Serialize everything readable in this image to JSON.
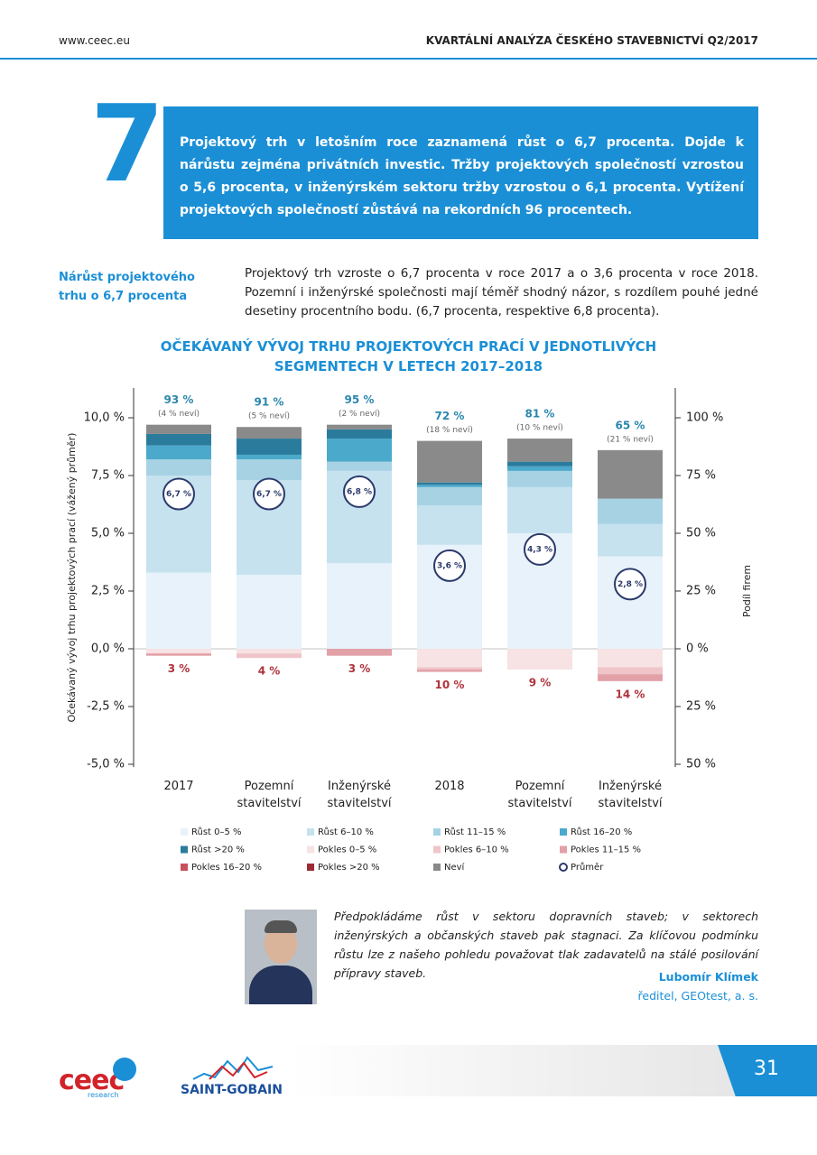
{
  "header": {
    "site": "www.ceec.eu",
    "title": "KVARTÁLNÍ ANALÝZA ČESKÉHO STAVEBNICTVÍ Q2/2017"
  },
  "callout": {
    "number": "7",
    "text": "Projektový trh v letošním roce zaznamená růst o 6,7 procenta. Dojde k nárůstu zejména privátních investic. Tržby projektových společností vzrostou o 5,6 procenta, v inženýrském sektoru tržby vzrostou o 6,1 procenta. Vytížení projektových společností zůstává na rekordních 96 procentech."
  },
  "section": {
    "heading": "Nárůst projektového trhu o 6,7 procenta",
    "text": "Projektový trh vzroste o 6,7 procenta v roce 2017 a o 3,6 procenta v roce 2018. Pozemní i inženýrské společnosti mají téměř shodný názor, s rozdílem pouhé jedné desetiny procentního bodu. (6,7 procenta, respektive 6,8 procenta)."
  },
  "chart_data": {
    "type": "bar",
    "stacked": true,
    "title": "OČEKÁVANÝ VÝVOJ TRHU PROJEKTOVÝCH PRACÍ V JEDNOTLIVÝCH SEGMENTECH V LETECH 2017–2018",
    "y_label": "Očekávaný vývoj trhu projektových prací (vážený průměr)",
    "y2_label": "Podíl firem",
    "categories": [
      "2017",
      "Pozemní stavitelství",
      "Inženýrské stavitelství",
      "2018",
      "Pozemní stavitelství",
      "Inženýrské stavitelství"
    ],
    "ylim": [
      -5,
      10
    ],
    "yticks": [
      {
        "value": -5,
        "label": "-5,0 %"
      },
      {
        "value": -2.5,
        "label": "-2,5 %"
      },
      {
        "value": 0,
        "label": "0,0 %"
      },
      {
        "value": 2.5,
        "label": "2,5 %"
      },
      {
        "value": 5,
        "label": "5,0 %"
      },
      {
        "value": 7.5,
        "label": "7,5 %"
      },
      {
        "value": 10,
        "label": "10,0 %"
      }
    ],
    "y2lim": [
      -50,
      100
    ],
    "y2ticks": [
      {
        "value": -50,
        "label": "50 %"
      },
      {
        "value": -25,
        "label": "25 %"
      },
      {
        "value": 0,
        "label": "0 %"
      },
      {
        "value": 25,
        "label": "25 %"
      },
      {
        "value": 50,
        "label": "50 %"
      },
      {
        "value": 75,
        "label": "75 %"
      },
      {
        "value": 100,
        "label": "100 %"
      }
    ],
    "series": [
      {
        "name": "Růst 0–5 %",
        "color": "#e8f2fa",
        "axis": "y2",
        "values": [
          33,
          32,
          37,
          45,
          50,
          40
        ]
      },
      {
        "name": "Růst 6–10 %",
        "color": "#c6e2ef",
        "axis": "y2",
        "values": [
          42,
          41,
          40,
          17,
          20,
          14
        ]
      },
      {
        "name": "Růst 11–15 %",
        "color": "#a6d2e4",
        "axis": "y2",
        "values": [
          7,
          9,
          4,
          8,
          7,
          11
        ]
      },
      {
        "name": "Růst 16–20 %",
        "color": "#4ba9cb",
        "axis": "y2",
        "values": [
          6,
          2,
          10,
          1,
          2,
          0
        ]
      },
      {
        "name": "Růst >20 %",
        "color": "#2b7b9d",
        "axis": "y2",
        "values": [
          5,
          7,
          4,
          1,
          2,
          0
        ]
      },
      {
        "name": "Pokles 0–5 %",
        "color": "#f7e2e4",
        "axis": "y2",
        "values": [
          -2,
          -2,
          0,
          -8,
          -9,
          -8
        ]
      },
      {
        "name": "Pokles 6–10 %",
        "color": "#efc5ca",
        "axis": "y2",
        "values": [
          0,
          -2,
          0,
          -1,
          0,
          -3
        ]
      },
      {
        "name": "Pokles 11–15 %",
        "color": "#e2a0a7",
        "axis": "y2",
        "values": [
          -1,
          0,
          -3,
          -1,
          0,
          -3
        ]
      },
      {
        "name": "Pokles 16–20 %",
        "color": "#c8505c",
        "axis": "y2",
        "values": [
          0,
          0,
          0,
          0,
          0,
          0
        ]
      },
      {
        "name": "Pokles >20 %",
        "color": "#9d2a33",
        "axis": "y2",
        "values": [
          0,
          0,
          0,
          0,
          0,
          0
        ]
      },
      {
        "name": "Neví",
        "color": "#8a8a8a",
        "axis": "y2",
        "values": [
          4,
          5,
          2,
          18,
          10,
          21
        ]
      }
    ],
    "average": {
      "name": "Průměr",
      "color": "#2b3a6b",
      "values": [
        6.7,
        6.7,
        6.8,
        3.6,
        4.3,
        2.8
      ],
      "value_labels": [
        "6,7 %",
        "6,7 %",
        "6,8 %",
        "3,6 %",
        "4,3 %",
        "2,8 %"
      ]
    },
    "growth_labels": [
      "93 %",
      "91 %",
      "95 %",
      "72 %",
      "81 %",
      "65 %"
    ],
    "unknown_labels": [
      "(4 % neví)",
      "(5 % neví)",
      "(2 % neví)",
      "(18 % neví)",
      "(10 % neví)",
      "(21 % neví)"
    ],
    "decline_labels": [
      "3 %",
      "4 %",
      "3 %",
      "10 %",
      "9 %",
      "14 %"
    ]
  },
  "quote": {
    "text": "Předpokládáme růst v sektoru dopravních staveb; v sektorech inženýrských a občanských staveb pak stagnaci. Za klíčovou podmínku růstu lze z našeho pohledu považovat tlak zadavatelů na stálé posilování přípravy staveb.",
    "name": "Lubomír Klímek",
    "role": "ředitel, GEOtest, a. s."
  },
  "footer": {
    "logo1": "ceec",
    "logo1_sub": "research",
    "logo2": "SAINT-GOBAIN",
    "page": "31"
  }
}
